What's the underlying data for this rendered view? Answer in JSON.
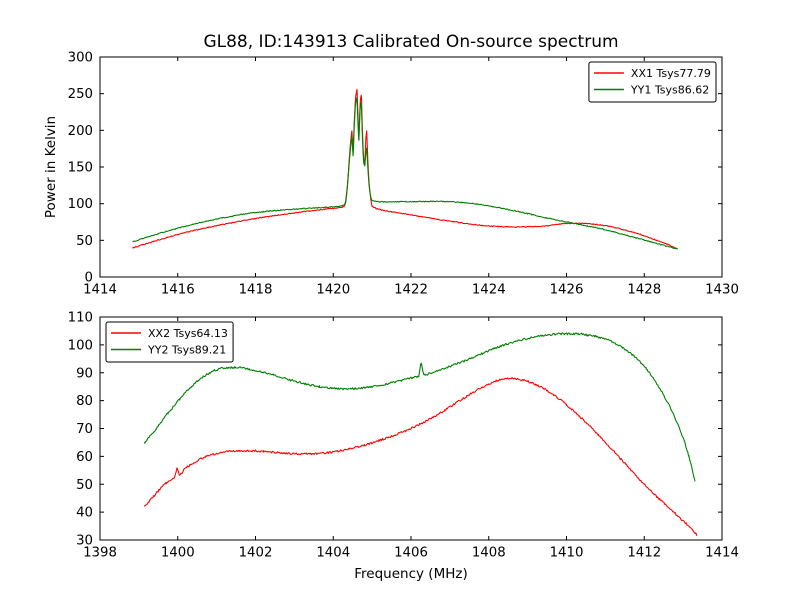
{
  "figure": {
    "background": "#ffffff",
    "text_color": "#000000",
    "axis_color": "#000000"
  },
  "chart_data": [
    {
      "type": "line",
      "name": "top",
      "title": "GL88, ID:143913 Calibrated On-source spectrum",
      "xlabel": "",
      "ylabel": "Power in Kelvin",
      "xlim": [
        1414,
        1430
      ],
      "ylim": [
        0,
        300
      ],
      "xticks": [
        1414,
        1416,
        1418,
        1420,
        1422,
        1424,
        1426,
        1428,
        1430
      ],
      "yticks": [
        0,
        50,
        100,
        150,
        200,
        250,
        300
      ],
      "grid": false,
      "legend_position": "top-right",
      "series": [
        {
          "name": "XX1 Tsys77.79",
          "color": "#ff0000",
          "noise": 0.6,
          "points": [
            [
              1414.85,
              40
            ],
            [
              1415.1,
              44
            ],
            [
              1415.4,
              49
            ],
            [
              1415.7,
              53.5
            ],
            [
              1416.0,
              58
            ],
            [
              1416.3,
              62
            ],
            [
              1416.6,
              65.5
            ],
            [
              1417.0,
              70
            ],
            [
              1417.4,
              74
            ],
            [
              1417.8,
              78
            ],
            [
              1418.2,
              81.5
            ],
            [
              1418.6,
              84.5
            ],
            [
              1419.0,
              87.5
            ],
            [
              1419.4,
              90
            ],
            [
              1419.8,
              92.5
            ],
            [
              1420.1,
              94
            ],
            [
              1420.22,
              95
            ],
            [
              1420.3,
              98
            ],
            [
              1420.36,
              120
            ],
            [
              1420.41,
              160
            ],
            [
              1420.45,
              185
            ],
            [
              1420.48,
              199
            ],
            [
              1420.51,
              172
            ],
            [
              1420.54,
              210
            ],
            [
              1420.58,
              247
            ],
            [
              1420.61,
              256
            ],
            [
              1420.64,
              215
            ],
            [
              1420.66,
              192
            ],
            [
              1420.69,
              235
            ],
            [
              1420.72,
              248
            ],
            [
              1420.75,
              200
            ],
            [
              1420.78,
              163
            ],
            [
              1420.81,
              155
            ],
            [
              1420.84,
              190
            ],
            [
              1420.86,
              199
            ],
            [
              1420.89,
              160
            ],
            [
              1420.92,
              130
            ],
            [
              1420.96,
              108
            ],
            [
              1421.0,
              97
            ],
            [
              1421.2,
              92
            ],
            [
              1421.5,
              89
            ],
            [
              1421.9,
              85.5
            ],
            [
              1422.3,
              82
            ],
            [
              1422.7,
              78.5
            ],
            [
              1423.1,
              75.5
            ],
            [
              1423.5,
              72.5
            ],
            [
              1423.9,
              70
            ],
            [
              1424.3,
              68.8
            ],
            [
              1424.7,
              68.2
            ],
            [
              1425.1,
              68.5
            ],
            [
              1425.5,
              70
            ],
            [
              1425.9,
              72.5
            ],
            [
              1426.3,
              73.2
            ],
            [
              1426.7,
              72
            ],
            [
              1427.1,
              69
            ],
            [
              1427.5,
              64
            ],
            [
              1427.9,
              58
            ],
            [
              1428.3,
              50.5
            ],
            [
              1428.6,
              44.5
            ],
            [
              1428.85,
              38
            ]
          ]
        },
        {
          "name": "YY1 Tsys86.62",
          "color": "#008000",
          "noise": 0.6,
          "points": [
            [
              1414.85,
              48
            ],
            [
              1415.1,
              52.5
            ],
            [
              1415.4,
              57.5
            ],
            [
              1415.7,
              62
            ],
            [
              1416.0,
              66.5
            ],
            [
              1416.3,
              70.5
            ],
            [
              1416.6,
              74.5
            ],
            [
              1417.0,
              79
            ],
            [
              1417.4,
              83
            ],
            [
              1417.8,
              86.5
            ],
            [
              1418.2,
              89
            ],
            [
              1418.6,
              91
            ],
            [
              1419.0,
              92.5
            ],
            [
              1419.4,
              93.8
            ],
            [
              1419.8,
              95
            ],
            [
              1420.1,
              96
            ],
            [
              1420.22,
              97
            ],
            [
              1420.3,
              100
            ],
            [
              1420.36,
              122
            ],
            [
              1420.41,
              155
            ],
            [
              1420.45,
              178
            ],
            [
              1420.48,
              192
            ],
            [
              1420.51,
              165
            ],
            [
              1420.54,
              205
            ],
            [
              1420.58,
              238
            ],
            [
              1420.61,
              245
            ],
            [
              1420.64,
              205
            ],
            [
              1420.66,
              186
            ],
            [
              1420.69,
              228
            ],
            [
              1420.72,
              238
            ],
            [
              1420.75,
              192
            ],
            [
              1420.78,
              158
            ],
            [
              1420.81,
              152
            ],
            [
              1420.84,
              170
            ],
            [
              1420.86,
              176
            ],
            [
              1420.89,
              150
            ],
            [
              1420.92,
              126
            ],
            [
              1420.96,
              110
            ],
            [
              1421.0,
              104.5
            ],
            [
              1421.3,
              102.5
            ],
            [
              1421.7,
              102.6
            ],
            [
              1422.1,
              102.8
            ],
            [
              1422.5,
              103
            ],
            [
              1422.9,
              102.8
            ],
            [
              1423.3,
              101.5
            ],
            [
              1423.7,
              99.5
            ],
            [
              1424.1,
              96
            ],
            [
              1424.5,
              92
            ],
            [
              1425.0,
              86.5
            ],
            [
              1425.5,
              80.5
            ],
            [
              1426.0,
              75
            ],
            [
              1426.4,
              71
            ],
            [
              1426.8,
              66.8
            ],
            [
              1427.2,
              61.8
            ],
            [
              1427.6,
              56
            ],
            [
              1428.0,
              50.5
            ],
            [
              1428.4,
              44.5
            ],
            [
              1428.85,
              38.5
            ]
          ]
        }
      ]
    },
    {
      "type": "line",
      "name": "bottom",
      "title": "",
      "xlabel": "Frequency (MHz)",
      "ylabel": "",
      "xlim": [
        1398,
        1414
      ],
      "ylim": [
        30,
        110
      ],
      "xticks": [
        1398,
        1400,
        1402,
        1404,
        1406,
        1408,
        1410,
        1412,
        1414
      ],
      "yticks": [
        30,
        40,
        50,
        60,
        70,
        80,
        90,
        100,
        110
      ],
      "grid": false,
      "legend_position": "top-left",
      "series": [
        {
          "name": "XX2 Tsys64.13",
          "color": "#ff0000",
          "noise": 0.35,
          "points": [
            [
              1399.15,
              42
            ],
            [
              1399.4,
              46
            ],
            [
              1399.7,
              50.5
            ],
            [
              1399.93,
              52.8
            ],
            [
              1399.98,
              55.8
            ],
            [
              1400.04,
              53.5
            ],
            [
              1400.2,
              55.8
            ],
            [
              1400.4,
              57.5
            ],
            [
              1400.7,
              59.8
            ],
            [
              1401.0,
              61
            ],
            [
              1401.3,
              61.8
            ],
            [
              1401.6,
              62
            ],
            [
              1401.9,
              62
            ],
            [
              1402.2,
              61.8
            ],
            [
              1402.5,
              61.4
            ],
            [
              1402.8,
              61.1
            ],
            [
              1403.1,
              60.9
            ],
            [
              1403.4,
              60.9
            ],
            [
              1403.7,
              61.1
            ],
            [
              1404.0,
              61.6
            ],
            [
              1404.4,
              62.6
            ],
            [
              1404.8,
              64
            ],
            [
              1405.2,
              65.8
            ],
            [
              1405.6,
              67.8
            ],
            [
              1406.0,
              70
            ],
            [
              1406.4,
              72.8
            ],
            [
              1406.8,
              76
            ],
            [
              1407.2,
              79.5
            ],
            [
              1407.6,
              83
            ],
            [
              1408.0,
              86
            ],
            [
              1408.3,
              87.5
            ],
            [
              1408.6,
              88
            ],
            [
              1408.9,
              87.4
            ],
            [
              1409.2,
              85.8
            ],
            [
              1409.6,
              82.8
            ],
            [
              1410.0,
              78.5
            ],
            [
              1410.4,
              73.5
            ],
            [
              1410.8,
              68
            ],
            [
              1411.2,
              62
            ],
            [
              1411.6,
              56
            ],
            [
              1412.0,
              50
            ],
            [
              1412.4,
              44.5
            ],
            [
              1412.8,
              39.5
            ],
            [
              1413.1,
              35.5
            ],
            [
              1413.35,
              32
            ]
          ]
        },
        {
          "name": "YY2 Tsys89.21",
          "color": "#008000",
          "noise": 0.35,
          "points": [
            [
              1399.15,
              65
            ],
            [
              1399.45,
              70
            ],
            [
              1399.75,
              75.5
            ],
            [
              1400.05,
              80.5
            ],
            [
              1400.35,
              85
            ],
            [
              1400.65,
              88.5
            ],
            [
              1400.95,
              90.8
            ],
            [
              1401.25,
              91.8
            ],
            [
              1401.55,
              91.9
            ],
            [
              1401.85,
              91.3
            ],
            [
              1402.15,
              90.3
            ],
            [
              1402.45,
              89.2
            ],
            [
              1402.75,
              88
            ],
            [
              1403.05,
              86.8
            ],
            [
              1403.35,
              85.8
            ],
            [
              1403.65,
              85
            ],
            [
              1403.95,
              84.5
            ],
            [
              1404.25,
              84.2
            ],
            [
              1404.55,
              84.3
            ],
            [
              1404.85,
              84.7
            ],
            [
              1405.15,
              85.3
            ],
            [
              1405.45,
              86.2
            ],
            [
              1405.75,
              87.2
            ],
            [
              1406.05,
              88.3
            ],
            [
              1406.2,
              88.8
            ],
            [
              1406.26,
              93.5
            ],
            [
              1406.33,
              89.3
            ],
            [
              1406.65,
              90.6
            ],
            [
              1406.95,
              92
            ],
            [
              1407.25,
              93.6
            ],
            [
              1407.55,
              95.2
            ],
            [
              1407.85,
              97
            ],
            [
              1408.15,
              98.7
            ],
            [
              1408.45,
              100.2
            ],
            [
              1408.75,
              101.5
            ],
            [
              1409.05,
              102.5
            ],
            [
              1409.35,
              103.3
            ],
            [
              1409.65,
              103.8
            ],
            [
              1409.95,
              104
            ],
            [
              1410.25,
              104
            ],
            [
              1410.55,
              103.5
            ],
            [
              1410.85,
              102.7
            ],
            [
              1411.15,
              101.2
            ],
            [
              1411.45,
              99
            ],
            [
              1411.75,
              95.8
            ],
            [
              1412.05,
              91.5
            ],
            [
              1412.35,
              85.5
            ],
            [
              1412.65,
              78
            ],
            [
              1412.95,
              68.5
            ],
            [
              1413.15,
              60
            ],
            [
              1413.3,
              51.5
            ]
          ]
        }
      ]
    }
  ]
}
